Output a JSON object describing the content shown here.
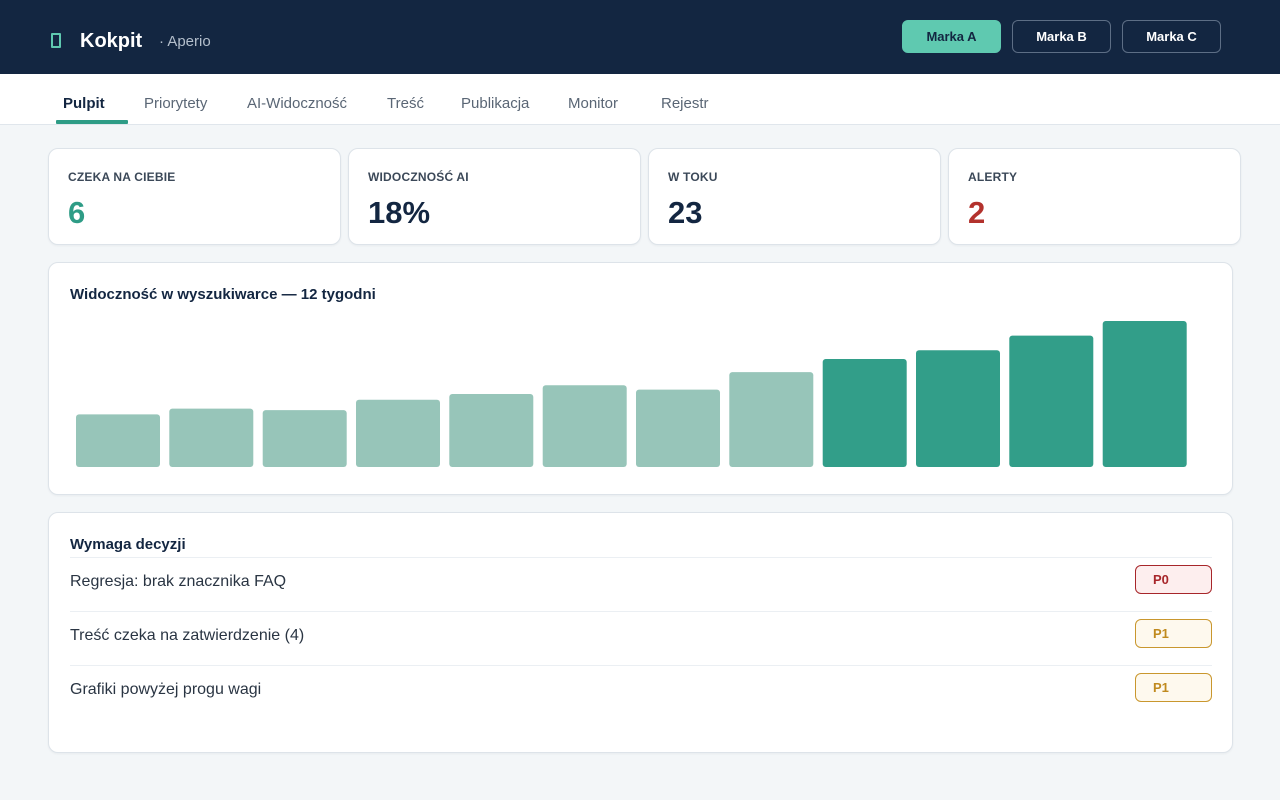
{
  "header": {
    "logo_icon": "device-icon",
    "title": "Kokpit",
    "subtitle": "· Aperio",
    "brands": [
      {
        "label": "Marka A",
        "active": true
      },
      {
        "label": "Marka B",
        "active": false
      },
      {
        "label": "Marka C",
        "active": false
      }
    ]
  },
  "nav": {
    "tabs": [
      {
        "label": "Pulpit",
        "active": true
      },
      {
        "label": "Priorytety",
        "active": false
      },
      {
        "label": "AI-Widoczność",
        "active": false
      },
      {
        "label": "Treść",
        "active": false
      },
      {
        "label": "Publikacja",
        "active": false
      },
      {
        "label": "Monitor",
        "active": false
      },
      {
        "label": "Rejestr",
        "active": false
      }
    ]
  },
  "stats": [
    {
      "label": "CZEKA NA CIEBIE",
      "value": "6",
      "color": "#2e9c86"
    },
    {
      "label": "WIDOCZNOŚĆ AI",
      "value": "18%",
      "color": "#132641"
    },
    {
      "label": "W TOKU",
      "value": "23",
      "color": "#132641"
    },
    {
      "label": "ALERTY",
      "value": "2",
      "color": "#b3322d"
    }
  ],
  "chart_section": {
    "title": "Widoczność w wyszukiwarce — 12 tygodni"
  },
  "chart_data": {
    "type": "bar",
    "title": "Widoczność w wyszukiwarce — 12 tygodni",
    "categories": [
      "",
      "",
      "",
      "",
      "",
      "",
      "",
      "",
      "",
      "",
      "",
      ""
    ],
    "values": [
      36,
      40,
      39,
      46,
      50,
      56,
      53,
      65,
      74,
      80,
      90,
      100
    ],
    "highlight_from_index": 8,
    "colors": {
      "past": "#97c5b9",
      "recent": "#329e89"
    },
    "ylim": [
      0,
      100
    ],
    "grid": false,
    "xlabel": "",
    "ylabel": ""
  },
  "decisions": {
    "title": "Wymaga decyzji",
    "items": [
      {
        "text": "Regresja: brak znacznika FAQ",
        "priority": "P0",
        "badge_color": "#a7262a",
        "badge_bg": "#fdeeee",
        "badge_border": "#a7262a"
      },
      {
        "text": "Treść czeka na zatwierdzenie (4)",
        "priority": "P1",
        "badge_color": "#c08a1e",
        "badge_bg": "#fef9ee",
        "badge_border": "#c9972e"
      },
      {
        "text": "Grafiki powyżej progu wagi",
        "priority": "P1",
        "badge_color": "#c08a1e",
        "badge_bg": "#fef9ee",
        "badge_border": "#c9972e"
      }
    ]
  }
}
